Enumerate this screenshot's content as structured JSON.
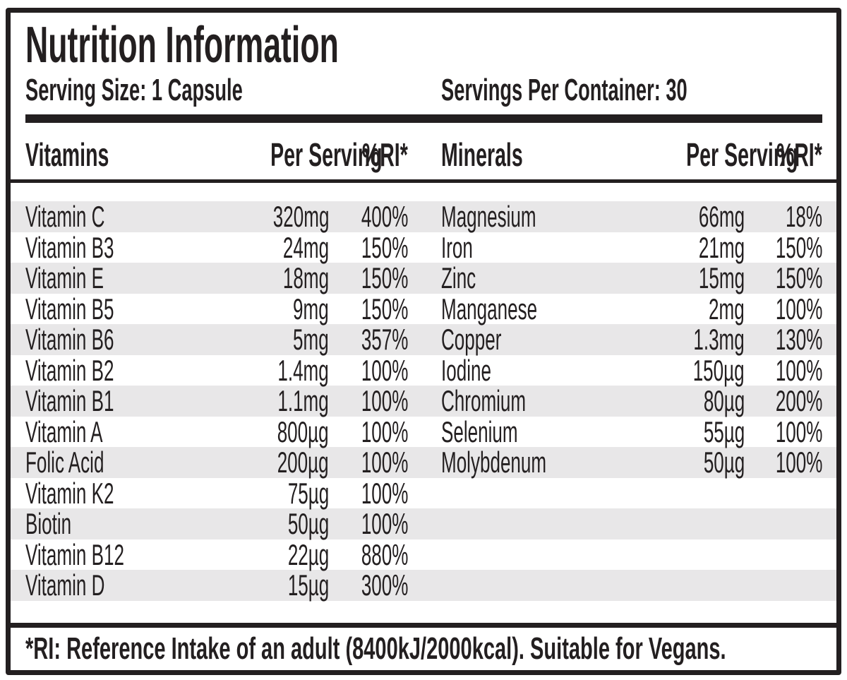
{
  "label": {
    "title": "Nutrition Information",
    "serving_size": "Serving Size: 1 Capsule",
    "servings_per_container": "Servings Per Container: 30",
    "footnote": "*RI: Reference Intake of an adult (8400kJ/2000kcal). Suitable for Vegans.",
    "colors": {
      "ink": "#231f20",
      "stripe": "#e8e7e8",
      "background": "#ffffff"
    },
    "vitamins": {
      "header": {
        "name": "Vitamins",
        "per_serving": "Per Serving",
        "ri": "%RI*"
      },
      "rows": [
        {
          "name": "Vitamin C",
          "amount": "320mg",
          "ri": "400%"
        },
        {
          "name": "Vitamin B3",
          "amount": "24mg",
          "ri": "150%"
        },
        {
          "name": "Vitamin E",
          "amount": "18mg",
          "ri": "150%"
        },
        {
          "name": "Vitamin B5",
          "amount": "9mg",
          "ri": "150%"
        },
        {
          "name": "Vitamin B6",
          "amount": "5mg",
          "ri": "357%"
        },
        {
          "name": "Vitamin B2",
          "amount": "1.4mg",
          "ri": "100%"
        },
        {
          "name": "Vitamin B1",
          "amount": "1.1mg",
          "ri": "100%"
        },
        {
          "name": "Vitamin A",
          "amount": "800µg",
          "ri": "100%"
        },
        {
          "name": "Folic Acid",
          "amount": "200µg",
          "ri": "100%"
        },
        {
          "name": "Vitamin K2",
          "amount": "75µg",
          "ri": "100%"
        },
        {
          "name": "Biotin",
          "amount": "50µg",
          "ri": "100%"
        },
        {
          "name": "Vitamin B12",
          "amount": "22µg",
          "ri": "880%"
        },
        {
          "name": "Vitamin D",
          "amount": "15µg",
          "ri": "300%"
        }
      ]
    },
    "minerals": {
      "header": {
        "name": "Minerals",
        "per_serving": "Per Serving",
        "ri": "%RI*"
      },
      "rows": [
        {
          "name": "Magnesium",
          "amount": "66mg",
          "ri": "18%"
        },
        {
          "name": "Iron",
          "amount": "21mg",
          "ri": "150%"
        },
        {
          "name": "Zinc",
          "amount": "15mg",
          "ri": "150%"
        },
        {
          "name": "Manganese",
          "amount": "2mg",
          "ri": "100%"
        },
        {
          "name": "Copper",
          "amount": "1.3mg",
          "ri": "130%"
        },
        {
          "name": "Iodine",
          "amount": "150µg",
          "ri": "100%"
        },
        {
          "name": "Chromium",
          "amount": "80µg",
          "ri": "200%"
        },
        {
          "name": "Selenium",
          "amount": "55µg",
          "ri": "100%"
        },
        {
          "name": "Molybdenum",
          "amount": "50µg",
          "ri": "100%"
        }
      ]
    }
  }
}
